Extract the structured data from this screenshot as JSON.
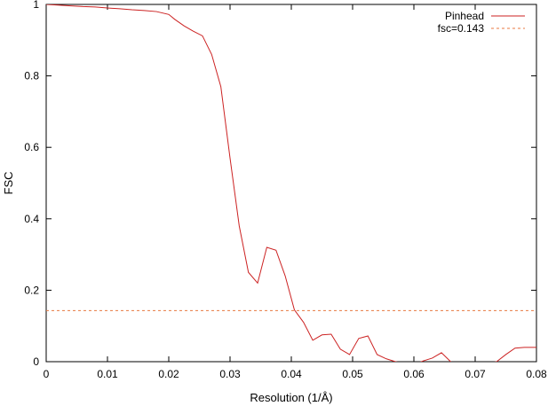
{
  "chart_data": {
    "type": "line",
    "title": "",
    "xlabel": "Resolution (1/Å)",
    "ylabel": "FSC",
    "xlim": [
      0,
      0.08
    ],
    "ylim": [
      0,
      1
    ],
    "x_ticks": [
      {
        "value": 0,
        "label": "0"
      },
      {
        "value": 0.01,
        "label": "0.01"
      },
      {
        "value": 0.02,
        "label": "0.02"
      },
      {
        "value": 0.03,
        "label": "0.03"
      },
      {
        "value": 0.04,
        "label": "0.04"
      },
      {
        "value": 0.05,
        "label": "0.05"
      },
      {
        "value": 0.06,
        "label": "0.06"
      },
      {
        "value": 0.07,
        "label": "0.07"
      },
      {
        "value": 0.08,
        "label": "0.08"
      }
    ],
    "y_ticks": [
      {
        "value": 0,
        "label": "0"
      },
      {
        "value": 0.2,
        "label": "0.2"
      },
      {
        "value": 0.4,
        "label": "0.4"
      },
      {
        "value": 0.6,
        "label": "0.6"
      },
      {
        "value": 0.8,
        "label": "0.8"
      },
      {
        "value": 1,
        "label": "1"
      }
    ],
    "grid": false,
    "legend_position": "top-right",
    "series": [
      {
        "name": "Pinhead",
        "color": "#cc2222",
        "style": "solid",
        "x": [
          0,
          0.002,
          0.004,
          0.006,
          0.008,
          0.01,
          0.012,
          0.014,
          0.016,
          0.018,
          0.02,
          0.021,
          0.0225,
          0.024,
          0.0255,
          0.027,
          0.0285,
          0.03,
          0.0315,
          0.033,
          0.0345,
          0.036,
          0.0375,
          0.039,
          0.0405,
          0.042,
          0.0435,
          0.045,
          0.0465,
          0.048,
          0.0495,
          0.051,
          0.0525,
          0.054,
          0.0555,
          0.057,
          0.0585,
          0.06,
          0.0615,
          0.063,
          0.0645,
          0.066,
          0.0675,
          0.069,
          0.0705,
          0.072,
          0.0735,
          0.075,
          0.0765,
          0.078,
          0.08
        ],
        "y": [
          1.0,
          0.998,
          0.996,
          0.994,
          0.993,
          0.99,
          0.988,
          0.985,
          0.983,
          0.98,
          0.972,
          0.958,
          0.94,
          0.925,
          0.912,
          0.86,
          0.77,
          0.57,
          0.38,
          0.25,
          0.22,
          0.32,
          0.312,
          0.24,
          0.145,
          0.11,
          0.06,
          0.075,
          0.077,
          0.035,
          0.02,
          0.065,
          0.072,
          0.02,
          0.008,
          0.0,
          -0.005,
          -0.008,
          0.002,
          0.01,
          0.025,
          0.0,
          -0.015,
          -0.02,
          -0.01,
          -0.005,
          0.0,
          0.02,
          0.038,
          0.04,
          0.04
        ]
      },
      {
        "name": "fsc=0.143",
        "color": "#e87a40",
        "style": "dashed",
        "x": [
          0,
          0.08
        ],
        "y": [
          0.143,
          0.143
        ]
      }
    ]
  }
}
